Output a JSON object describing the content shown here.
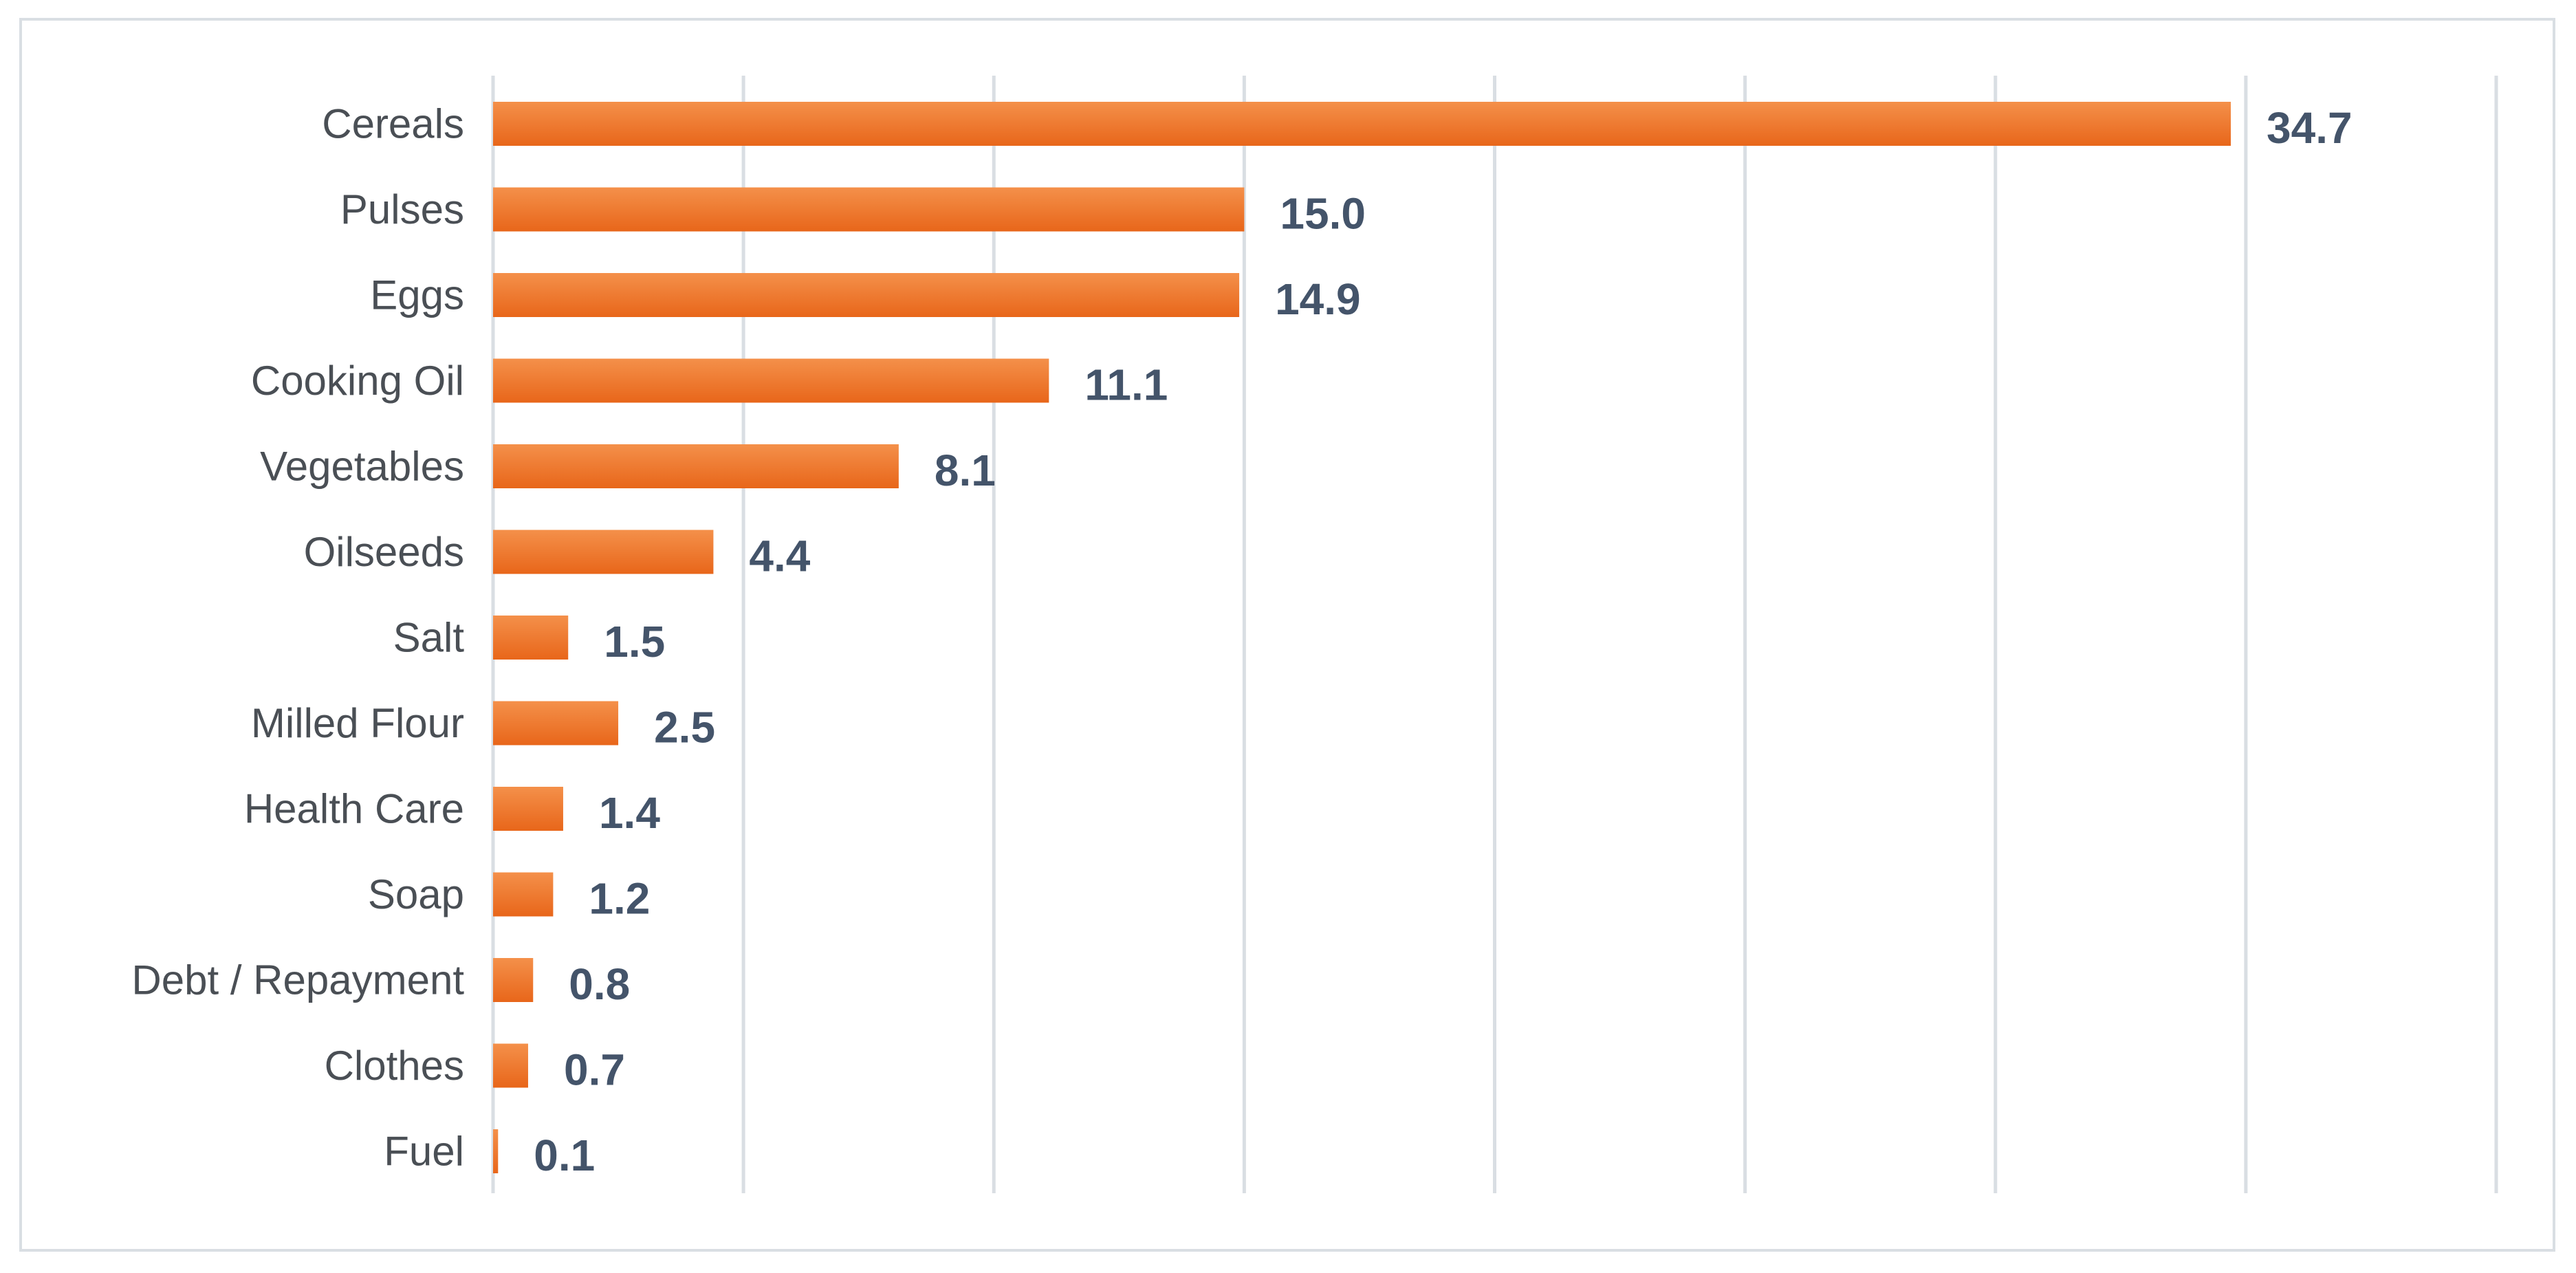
{
  "chart_data": {
    "type": "bar",
    "orientation": "horizontal",
    "categories": [
      "Cereals",
      "Pulses",
      "Eggs",
      "Cooking Oil",
      "Vegetables",
      "Oilseeds",
      "Salt",
      "Milled Flour",
      "Health Care",
      "Soap",
      "Debt / Repayment",
      "Clothes",
      "Fuel"
    ],
    "values": [
      34.7,
      15.0,
      14.9,
      11.1,
      8.1,
      4.4,
      1.5,
      2.5,
      1.4,
      1.2,
      0.8,
      0.7,
      0.1
    ],
    "value_labels": [
      "34.7",
      "15.0",
      "14.9",
      "11.1",
      "8.1",
      "4.4",
      "1.5",
      "2.5",
      "1.4",
      "1.2",
      "0.8",
      "0.7",
      "0.1"
    ],
    "title": "",
    "xlabel": "",
    "ylabel": "",
    "xlim": [
      0,
      40
    ],
    "grid": true,
    "legend": "none",
    "colors": {
      "bar_light": "#f4904a",
      "bar_dark": "#e8661a",
      "grid": "#d9dee3",
      "value_text": "#44546a",
      "category_text": "#4a4f55"
    }
  }
}
